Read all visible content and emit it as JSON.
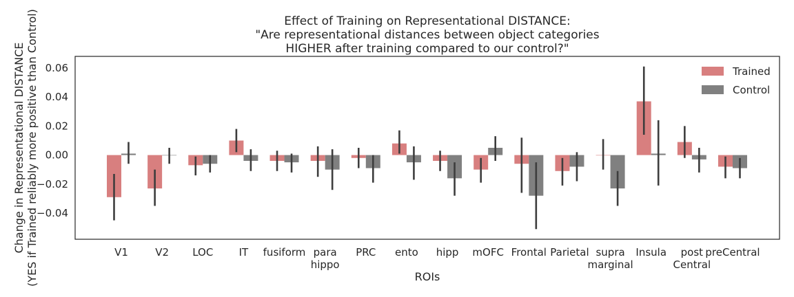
{
  "chart_data": {
    "type": "bar",
    "title": "Effect of Training on Representational DISTANCE:\n\"Are representational distances between object categories\nHIGHER after training compared to our control?\"",
    "xlabel": "ROIs",
    "ylabel": "Change in Representational DISTANCE\n(YES if Trained reliably more positive than Control)",
    "categories": [
      "V1",
      "V2",
      "LOC",
      "IT",
      "fusiform",
      "para\nhippo",
      "PRC",
      "ento",
      "hipp",
      "mOFC",
      "Frontal",
      "Parietal",
      "supra\nmarginal",
      "Insula",
      "post\nCentral",
      "preCentral"
    ],
    "ylim": [
      -0.058,
      0.068
    ],
    "yticks": [
      -0.04,
      -0.02,
      0.0,
      0.02,
      0.04,
      0.06
    ],
    "ytick_labels": [
      "−0.04",
      "−0.02",
      "0.00",
      "0.02",
      "0.04",
      "0.06"
    ],
    "grid": false,
    "legend": "top-right",
    "series": [
      {
        "name": "Trained",
        "color": "#d87f7f",
        "values": [
          -0.029,
          -0.023,
          -0.007,
          0.01,
          -0.004,
          -0.004,
          -0.002,
          0.008,
          -0.004,
          -0.01,
          -0.006,
          -0.011,
          0.0,
          0.037,
          0.009,
          -0.008
        ],
        "ci_low": [
          -0.045,
          -0.035,
          -0.014,
          0.002,
          -0.011,
          -0.015,
          -0.009,
          0.001,
          -0.011,
          -0.019,
          -0.026,
          -0.021,
          -0.01,
          0.014,
          -0.002,
          -0.016
        ],
        "ci_high": [
          -0.013,
          -0.01,
          -0.001,
          0.018,
          0.003,
          0.006,
          0.005,
          0.017,
          0.003,
          -0.002,
          0.012,
          -0.002,
          0.011,
          0.061,
          0.02,
          -0.001
        ]
      },
      {
        "name": "Control",
        "color": "#808080",
        "values": [
          0.001,
          0.0,
          -0.006,
          -0.004,
          -0.005,
          -0.01,
          -0.009,
          -0.005,
          -0.016,
          0.005,
          -0.028,
          -0.008,
          -0.023,
          0.001,
          -0.003,
          -0.009
        ],
        "ci_low": [
          -0.006,
          -0.006,
          -0.012,
          -0.011,
          -0.012,
          -0.024,
          -0.019,
          -0.017,
          -0.028,
          -0.004,
          -0.051,
          -0.018,
          -0.035,
          -0.021,
          -0.012,
          -0.016
        ],
        "ci_high": [
          0.009,
          0.005,
          0.0,
          0.004,
          0.001,
          0.004,
          0.0,
          0.006,
          -0.005,
          0.013,
          -0.005,
          0.002,
          -0.011,
          0.024,
          0.005,
          -0.002
        ]
      }
    ]
  }
}
